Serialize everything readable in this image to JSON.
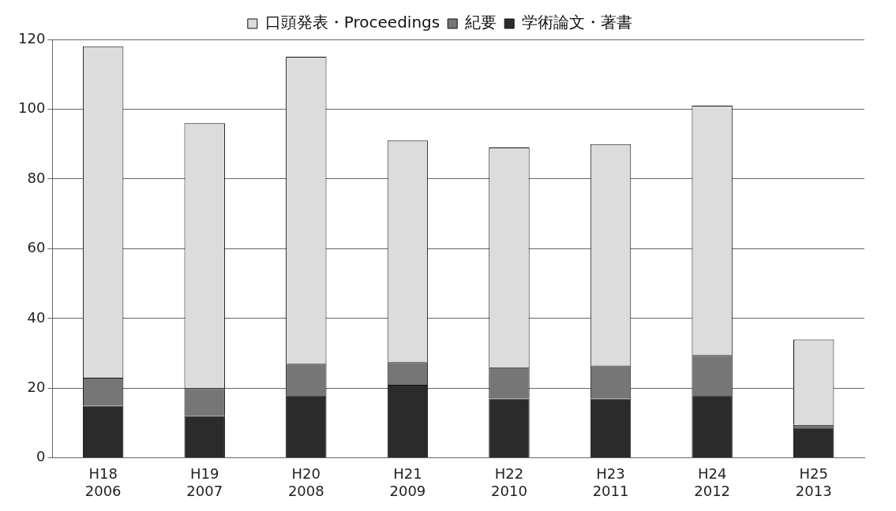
{
  "chart_data": {
    "type": "bar",
    "stacked": true,
    "categories": [
      "H18\n2006",
      "H19\n2007",
      "H20\n2008",
      "H21\n2009",
      "H22\n2010",
      "H23\n2011",
      "H24\n2012",
      "H25\n2013"
    ],
    "series": [
      {
        "name": "学術論文・著書",
        "color": "#2b2b2b",
        "values": [
          15,
          12,
          18,
          21,
          17,
          17,
          18,
          8.7
        ]
      },
      {
        "name": "紀要",
        "color": "#767676",
        "values": [
          8,
          8,
          9,
          6.5,
          9,
          9.5,
          11.5,
          0.8
        ]
      },
      {
        "name": "口頭発表・Proceedings",
        "color": "#dcdcdc",
        "values": [
          95,
          76,
          88,
          63.5,
          63,
          63.5,
          71.5,
          24.5
        ]
      }
    ],
    "ylim": [
      0,
      120
    ],
    "yticks": [
      0,
      20,
      40,
      60,
      80,
      100,
      120
    ],
    "grid": "y",
    "legend": "top"
  }
}
